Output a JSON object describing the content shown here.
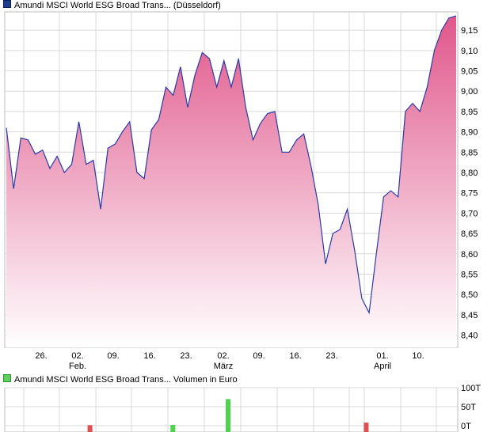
{
  "legend_price": "Amundi MSCI World ESG Broad Trans... (Düsseldorf)",
  "legend_volume": "Amundi MSCI World ESG Broad Trans... Volumen in Euro",
  "colors": {
    "line": "#2a3aa8",
    "area_top": "#e0578b",
    "area_bottom": "#ffffff",
    "grid": "#d9d9d9",
    "vol_up": "#4cd44c",
    "vol_down": "#e05050"
  },
  "chart_data": [
    {
      "type": "area",
      "title": "Amundi MSCI World ESG Broad Trans... (Düsseldorf)",
      "ylim": [
        8.37,
        9.195
      ],
      "yticks": [
        "9,15",
        "9,10",
        "9,05",
        "9,00",
        "8,95",
        "8,90",
        "8,85",
        "8,80",
        "8,75",
        "8,70",
        "8,65",
        "8,60",
        "8,55",
        "8,50",
        "8,45",
        "8,40"
      ],
      "ytick_values": [
        9.15,
        9.1,
        9.05,
        9.0,
        8.95,
        8.9,
        8.85,
        8.8,
        8.75,
        8.7,
        8.65,
        8.6,
        8.55,
        8.5,
        8.45,
        8.4
      ],
      "xticks": [
        {
          "day": "26.",
          "month": ""
        },
        {
          "day": "02.",
          "month": "Feb."
        },
        {
          "day": "09.",
          "month": ""
        },
        {
          "day": "16.",
          "month": ""
        },
        {
          "day": "23.",
          "month": ""
        },
        {
          "day": "02.",
          "month": "März"
        },
        {
          "day": "09.",
          "month": ""
        },
        {
          "day": "16.",
          "month": ""
        },
        {
          "day": "23.",
          "month": ""
        },
        {
          "day": "01.",
          "month": "April"
        },
        {
          "day": "10.",
          "month": ""
        }
      ],
      "series": [
        {
          "values": [
            8.91,
            8.76,
            8.885,
            8.88,
            8.845,
            8.855,
            8.81,
            8.84,
            8.8,
            8.82,
            8.925,
            8.82,
            8.83,
            8.71,
            8.86,
            8.87,
            8.9,
            8.925,
            8.8,
            8.785,
            8.905,
            8.93,
            9.01,
            8.99,
            9.06,
            8.96,
            9.04,
            9.095,
            9.08,
            9.01,
            9.075,
            9.01,
            9.08,
            8.96,
            8.88,
            8.92,
            8.945,
            8.95,
            8.85,
            8.85,
            8.88,
            8.895,
            8.815,
            8.72,
            8.575,
            8.65,
            8.66,
            8.71,
            8.61,
            8.49,
            8.455,
            8.6,
            8.74,
            8.755,
            8.74,
            8.95,
            8.97,
            8.95,
            9.01,
            9.1,
            9.15,
            9.18,
            9.185
          ]
        }
      ]
    },
    {
      "type": "bar",
      "title": "Amundi MSCI World ESG Broad Trans... Volumen in Euro",
      "ylim": [
        0,
        100
      ],
      "yticks": [
        "100T",
        "50T",
        "0T"
      ],
      "ytick_values": [
        100,
        50,
        0
      ],
      "ylabel": "",
      "bars": [
        {
          "index": 15,
          "value": 1.5,
          "dir": "down"
        },
        {
          "index": 30,
          "value": 2,
          "dir": "up"
        },
        {
          "index": 40,
          "value": 70,
          "dir": "up"
        },
        {
          "index": 65,
          "value": 8,
          "dir": "down"
        }
      ],
      "bar_slots": 82
    }
  ]
}
